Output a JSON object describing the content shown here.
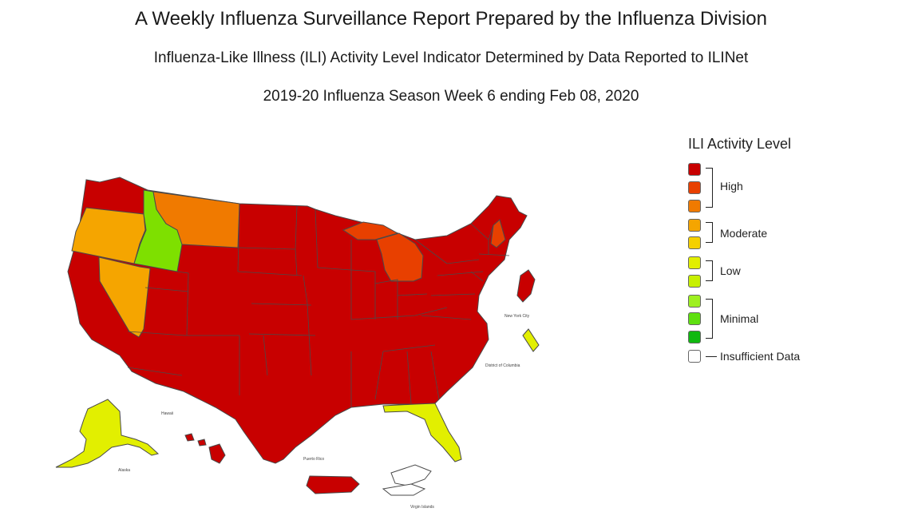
{
  "titles": {
    "main": "A Weekly Influenza Surveillance Report Prepared by the Influenza Division",
    "sub": "Influenza-Like Illness (ILI) Activity Level Indicator Determined by Data Reported to ILINet",
    "week": "2019-20 Influenza Season Week 6 ending Feb 08, 2020"
  },
  "legend": {
    "title": "ILI Activity Level",
    "groups": [
      "High",
      "Moderate",
      "Low",
      "Minimal"
    ],
    "insufficient": "Insufficient Data",
    "swatches": [
      "#c80000",
      "#e84000",
      "#f07a00",
      "#f5a500",
      "#f5d000",
      "#e2ef00",
      "#c7f000",
      "#9ef020",
      "#5fe010",
      "#10b810",
      "#ffffff"
    ]
  },
  "map_labels": {
    "nyc": "New York City",
    "dc": "District of Columbia",
    "hawaii": "Hawaii",
    "alaska": "Alaska",
    "puerto_rico": "Puerto Rico",
    "virgin_islands": "Virgin Islands"
  },
  "activity_colors": {
    "high": "#c80000",
    "high_mid": "#e84000",
    "high_low": "#f07a00",
    "moderate": "#f5a500",
    "low": "#e2ef00",
    "minimal": "#7ee000",
    "insufficient": "#ffffff"
  },
  "states": {
    "Idaho": "minimal",
    "Oregon": "moderate",
    "Nevada": "moderate",
    "Montana": "high_low",
    "Michigan": "high_mid",
    "New Hampshire": "high_mid",
    "Florida": "low",
    "Alaska": "low",
    "New York City": "low",
    "Virgin Islands": "insufficient",
    "Puerto Rico": "high",
    "Hawaii": "high",
    "all_other_states": "high"
  }
}
